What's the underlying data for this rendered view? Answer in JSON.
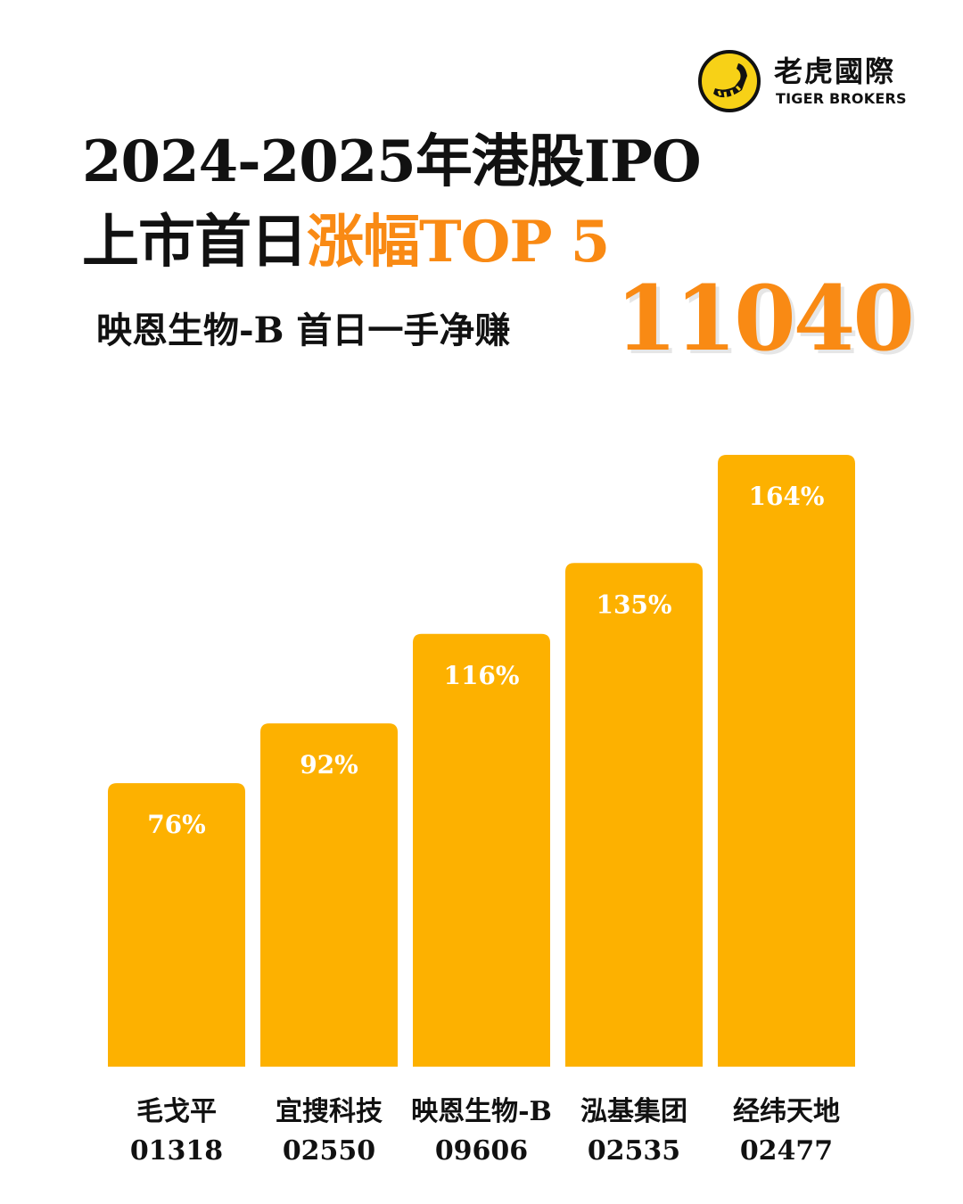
{
  "brand": {
    "name_cn": "老虎國際",
    "name_en": "TIGER BROKERS",
    "colors": {
      "logo_yellow": "#f7d117",
      "logo_black": "#111111"
    }
  },
  "header": {
    "title_line1": "2024-2025年港股IPO",
    "title_line2_prefix": "上市首日",
    "title_line2_highlight": "涨幅TOP 5",
    "subtitle": "映恩生物-B 首日一手净赚",
    "highlight_number": "11040"
  },
  "colors": {
    "bar": "#fdb100",
    "accent": "#f98a14",
    "text": "#111111",
    "bar_label": "#ffffff"
  },
  "chart_data": {
    "type": "bar",
    "title": "2024-2025年港股IPO 上市首日涨幅TOP 5",
    "categories": [
      "毛戈平",
      "宜搜科技",
      "映恩生物-B",
      "泓基集团",
      "经纬天地"
    ],
    "codes": [
      "01318",
      "02550",
      "09606",
      "02535",
      "02477"
    ],
    "values": [
      76,
      92,
      116,
      135,
      164
    ],
    "value_labels": [
      "76%",
      "92%",
      "116%",
      "135%",
      "164%"
    ],
    "unit": "%",
    "ylim": [
      0,
      164
    ],
    "grid": false,
    "legend": "none"
  }
}
